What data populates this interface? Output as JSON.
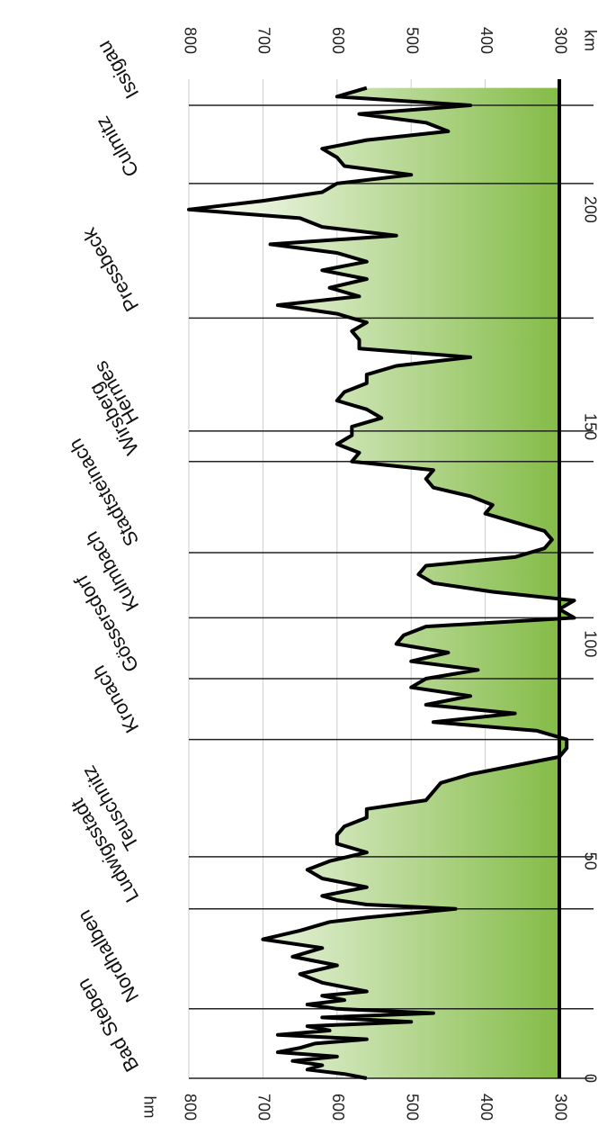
{
  "chart_data": {
    "type": "area",
    "title": "",
    "x_unit": "km",
    "y_unit": "hm",
    "ylim": [
      300,
      800
    ],
    "xlim": [
      0,
      230
    ],
    "y_ticks_left": [
      "800",
      "700",
      "600",
      "500",
      "400",
      "300"
    ],
    "y_ticks_right": [
      "800",
      "700",
      "600",
      "500",
      "400",
      "300"
    ],
    "x_ticks": [
      "0",
      "50",
      "100",
      "150",
      "200"
    ],
    "x_tick_values": [
      0,
      50,
      100,
      150,
      200
    ],
    "y_tick_values": [
      800,
      700,
      600,
      500,
      400,
      300
    ],
    "grid": true,
    "colors": {
      "fill_top": "#ffffff",
      "fill_bottom": "#7fb940",
      "line": "#000000",
      "grid": "#cccccc"
    },
    "places": [
      {
        "name": "Bad Steben",
        "km": 0
      },
      {
        "name": "Nordhalben",
        "km": 16
      },
      {
        "name": "Ludwigsstadt",
        "km": 39
      },
      {
        "name": "Teuschnitz",
        "km": 51
      },
      {
        "name": "Kronach",
        "km": 78
      },
      {
        "name": "Gössersdorf",
        "km": 92
      },
      {
        "name": "Kulmbach",
        "km": 106
      },
      {
        "name": "Stadtsteinach",
        "km": 121
      },
      {
        "name": "Wirsberg",
        "km": 142
      },
      {
        "name": "Hermes",
        "km": 149
      },
      {
        "name": "Pressbeck",
        "km": 175
      },
      {
        "name": "Culmitz",
        "km": 206
      },
      {
        "name": "Issigau",
        "km": 224
      }
    ],
    "series": [
      {
        "km": [
          0,
          1,
          2,
          3,
          4,
          5,
          6,
          7,
          8,
          9,
          10,
          11,
          12,
          13,
          14,
          15,
          16,
          17,
          18,
          19,
          20,
          22,
          24,
          26,
          28,
          30,
          32,
          34,
          36,
          37,
          38,
          39,
          40,
          41,
          42,
          44,
          46,
          48,
          50,
          52,
          54,
          56,
          58,
          60,
          62,
          64,
          66,
          68,
          70,
          72,
          74,
          76,
          78,
          80,
          82,
          84,
          86,
          88,
          90,
          92,
          94,
          96,
          98,
          100,
          102,
          104,
          106,
          108,
          110,
          112,
          114,
          116,
          118,
          120,
          122,
          124,
          126,
          128,
          130,
          132,
          134,
          136,
          138,
          140,
          142,
          144,
          146,
          148,
          150,
          152,
          154,
          156,
          158,
          160,
          162,
          164,
          166,
          168,
          170,
          172,
          174,
          176,
          178,
          180,
          182,
          184,
          186,
          188,
          190,
          192,
          194,
          196,
          198,
          200,
          202,
          204,
          206,
          208,
          210,
          212,
          214,
          216,
          218,
          220,
          222,
          224,
          226,
          228
        ],
        "hm": [
          560,
          590,
          640,
          620,
          660,
          600,
          680,
          650,
          630,
          560,
          680,
          610,
          640,
          500,
          620,
          470,
          600,
          640,
          590,
          620,
          560,
          620,
          650,
          600,
          660,
          620,
          700,
          650,
          610,
          560,
          500,
          440,
          560,
          600,
          620,
          560,
          620,
          640,
          610,
          560,
          600,
          600,
          590,
          560,
          560,
          480,
          470,
          460,
          420,
          360,
          300,
          290,
          290,
          330,
          470,
          360,
          480,
          420,
          500,
          480,
          410,
          500,
          450,
          520,
          510,
          480,
          280,
          300,
          280,
          390,
          470,
          490,
          480,
          360,
          320,
          310,
          320,
          360,
          400,
          390,
          420,
          470,
          480,
          470,
          580,
          570,
          600,
          580,
          580,
          540,
          560,
          600,
          590,
          560,
          560,
          520,
          420,
          570,
          570,
          580,
          560,
          600,
          680,
          570,
          610,
          560,
          620,
          560,
          600,
          690,
          520,
          620,
          650,
          800,
          700,
          620,
          600,
          500,
          590,
          600,
          620,
          560,
          450,
          480,
          570,
          420,
          600,
          560
        ],
        "name": ""
      }
    ]
  }
}
